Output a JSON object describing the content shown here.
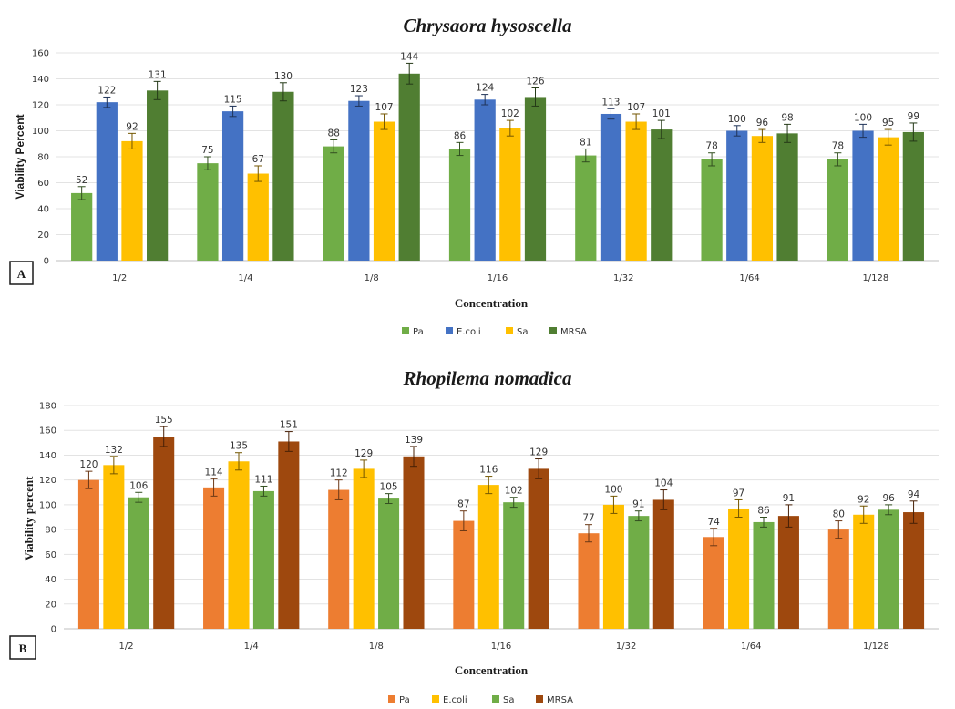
{
  "chart_data": [
    {
      "panel": "A",
      "type": "bar",
      "title": "Chrysaora hysoscella",
      "xlabel": "Concentration",
      "ylabel": "Viability Percent",
      "ylim": [
        0,
        160
      ],
      "yticks": [
        0,
        20,
        40,
        60,
        80,
        100,
        120,
        140,
        160
      ],
      "grid": true,
      "legend_position": "bottom",
      "categories": [
        "1/2",
        "1/4",
        "1/8",
        "1/16",
        "1/32",
        "1/64",
        "1/128"
      ],
      "series": [
        {
          "name": "Pa",
          "color": "#70ad47",
          "values": [
            52,
            75,
            88,
            86,
            81,
            78,
            78
          ],
          "errors": [
            5,
            5,
            5,
            5,
            5,
            5,
            5
          ],
          "labels": [
            "52",
            "75",
            "88",
            "86",
            "81",
            "78",
            "78"
          ]
        },
        {
          "name": "E.coli",
          "color": "#4472c4",
          "values": [
            122,
            115,
            123,
            124,
            113,
            100,
            100
          ],
          "errors": [
            4,
            4,
            4,
            4,
            4,
            4,
            5
          ],
          "labels": [
            "122",
            "115",
            "123",
            "124",
            "113",
            "100",
            "100"
          ]
        },
        {
          "name": "Sa",
          "color": "#ffc000",
          "values": [
            92,
            67,
            107,
            102,
            107,
            96,
            95
          ],
          "errors": [
            6,
            6,
            6,
            6,
            6,
            5,
            6
          ],
          "labels": [
            "92",
            "67",
            "107",
            "102",
            "107",
            "96",
            "95"
          ]
        },
        {
          "name": "MRSA",
          "color": "#507e32",
          "values": [
            131,
            130,
            144,
            126,
            101,
            98,
            99
          ],
          "errors": [
            7,
            7,
            8,
            7,
            7,
            7,
            7
          ],
          "labels": [
            "131",
            "130",
            "144",
            "126",
            "101",
            "98",
            "99"
          ]
        }
      ]
    },
    {
      "panel": "B",
      "type": "bar",
      "title": "Rhopilema nomadica",
      "xlabel": "Concentration",
      "ylabel": "Viability percent",
      "ylim": [
        0,
        180
      ],
      "yticks": [
        0,
        20,
        40,
        60,
        80,
        100,
        120,
        140,
        160,
        180
      ],
      "grid": true,
      "legend_position": "bottom",
      "categories": [
        "1/2",
        "1/4",
        "1/8",
        "1/16",
        "1/32",
        "1/64",
        "1/128"
      ],
      "series": [
        {
          "name": "Pa",
          "color": "#ed7d31",
          "values": [
            120,
            114,
            112,
            87,
            77,
            74,
            80
          ],
          "errors": [
            7,
            7,
            8,
            8,
            7,
            7,
            7
          ],
          "labels": [
            "120",
            "114",
            "112",
            "87",
            "77",
            "74",
            "80"
          ]
        },
        {
          "name": "E.coli",
          "color": "#ffc000",
          "values": [
            132,
            135,
            129,
            116,
            100,
            97,
            92
          ],
          "errors": [
            7,
            7,
            7,
            7,
            7,
            7,
            7
          ],
          "labels": [
            "132",
            "135",
            "129",
            "116",
            "100",
            "97",
            "92"
          ]
        },
        {
          "name": "Sa",
          "color": "#70ad47",
          "values": [
            106,
            111,
            105,
            102,
            91,
            86,
            96
          ],
          "errors": [
            4,
            4,
            4,
            4,
            4,
            4,
            4
          ],
          "labels": [
            "106",
            "111",
            "105",
            "102",
            "91",
            "86",
            "96"
          ]
        },
        {
          "name": "MRSA",
          "color": "#9e480e",
          "values": [
            155,
            151,
            139,
            129,
            104,
            91,
            94
          ],
          "errors": [
            8,
            8,
            8,
            8,
            8,
            9,
            9
          ],
          "labels": [
            "155",
            "151",
            "139",
            "129",
            "104",
            "91",
            "94"
          ]
        }
      ]
    }
  ]
}
